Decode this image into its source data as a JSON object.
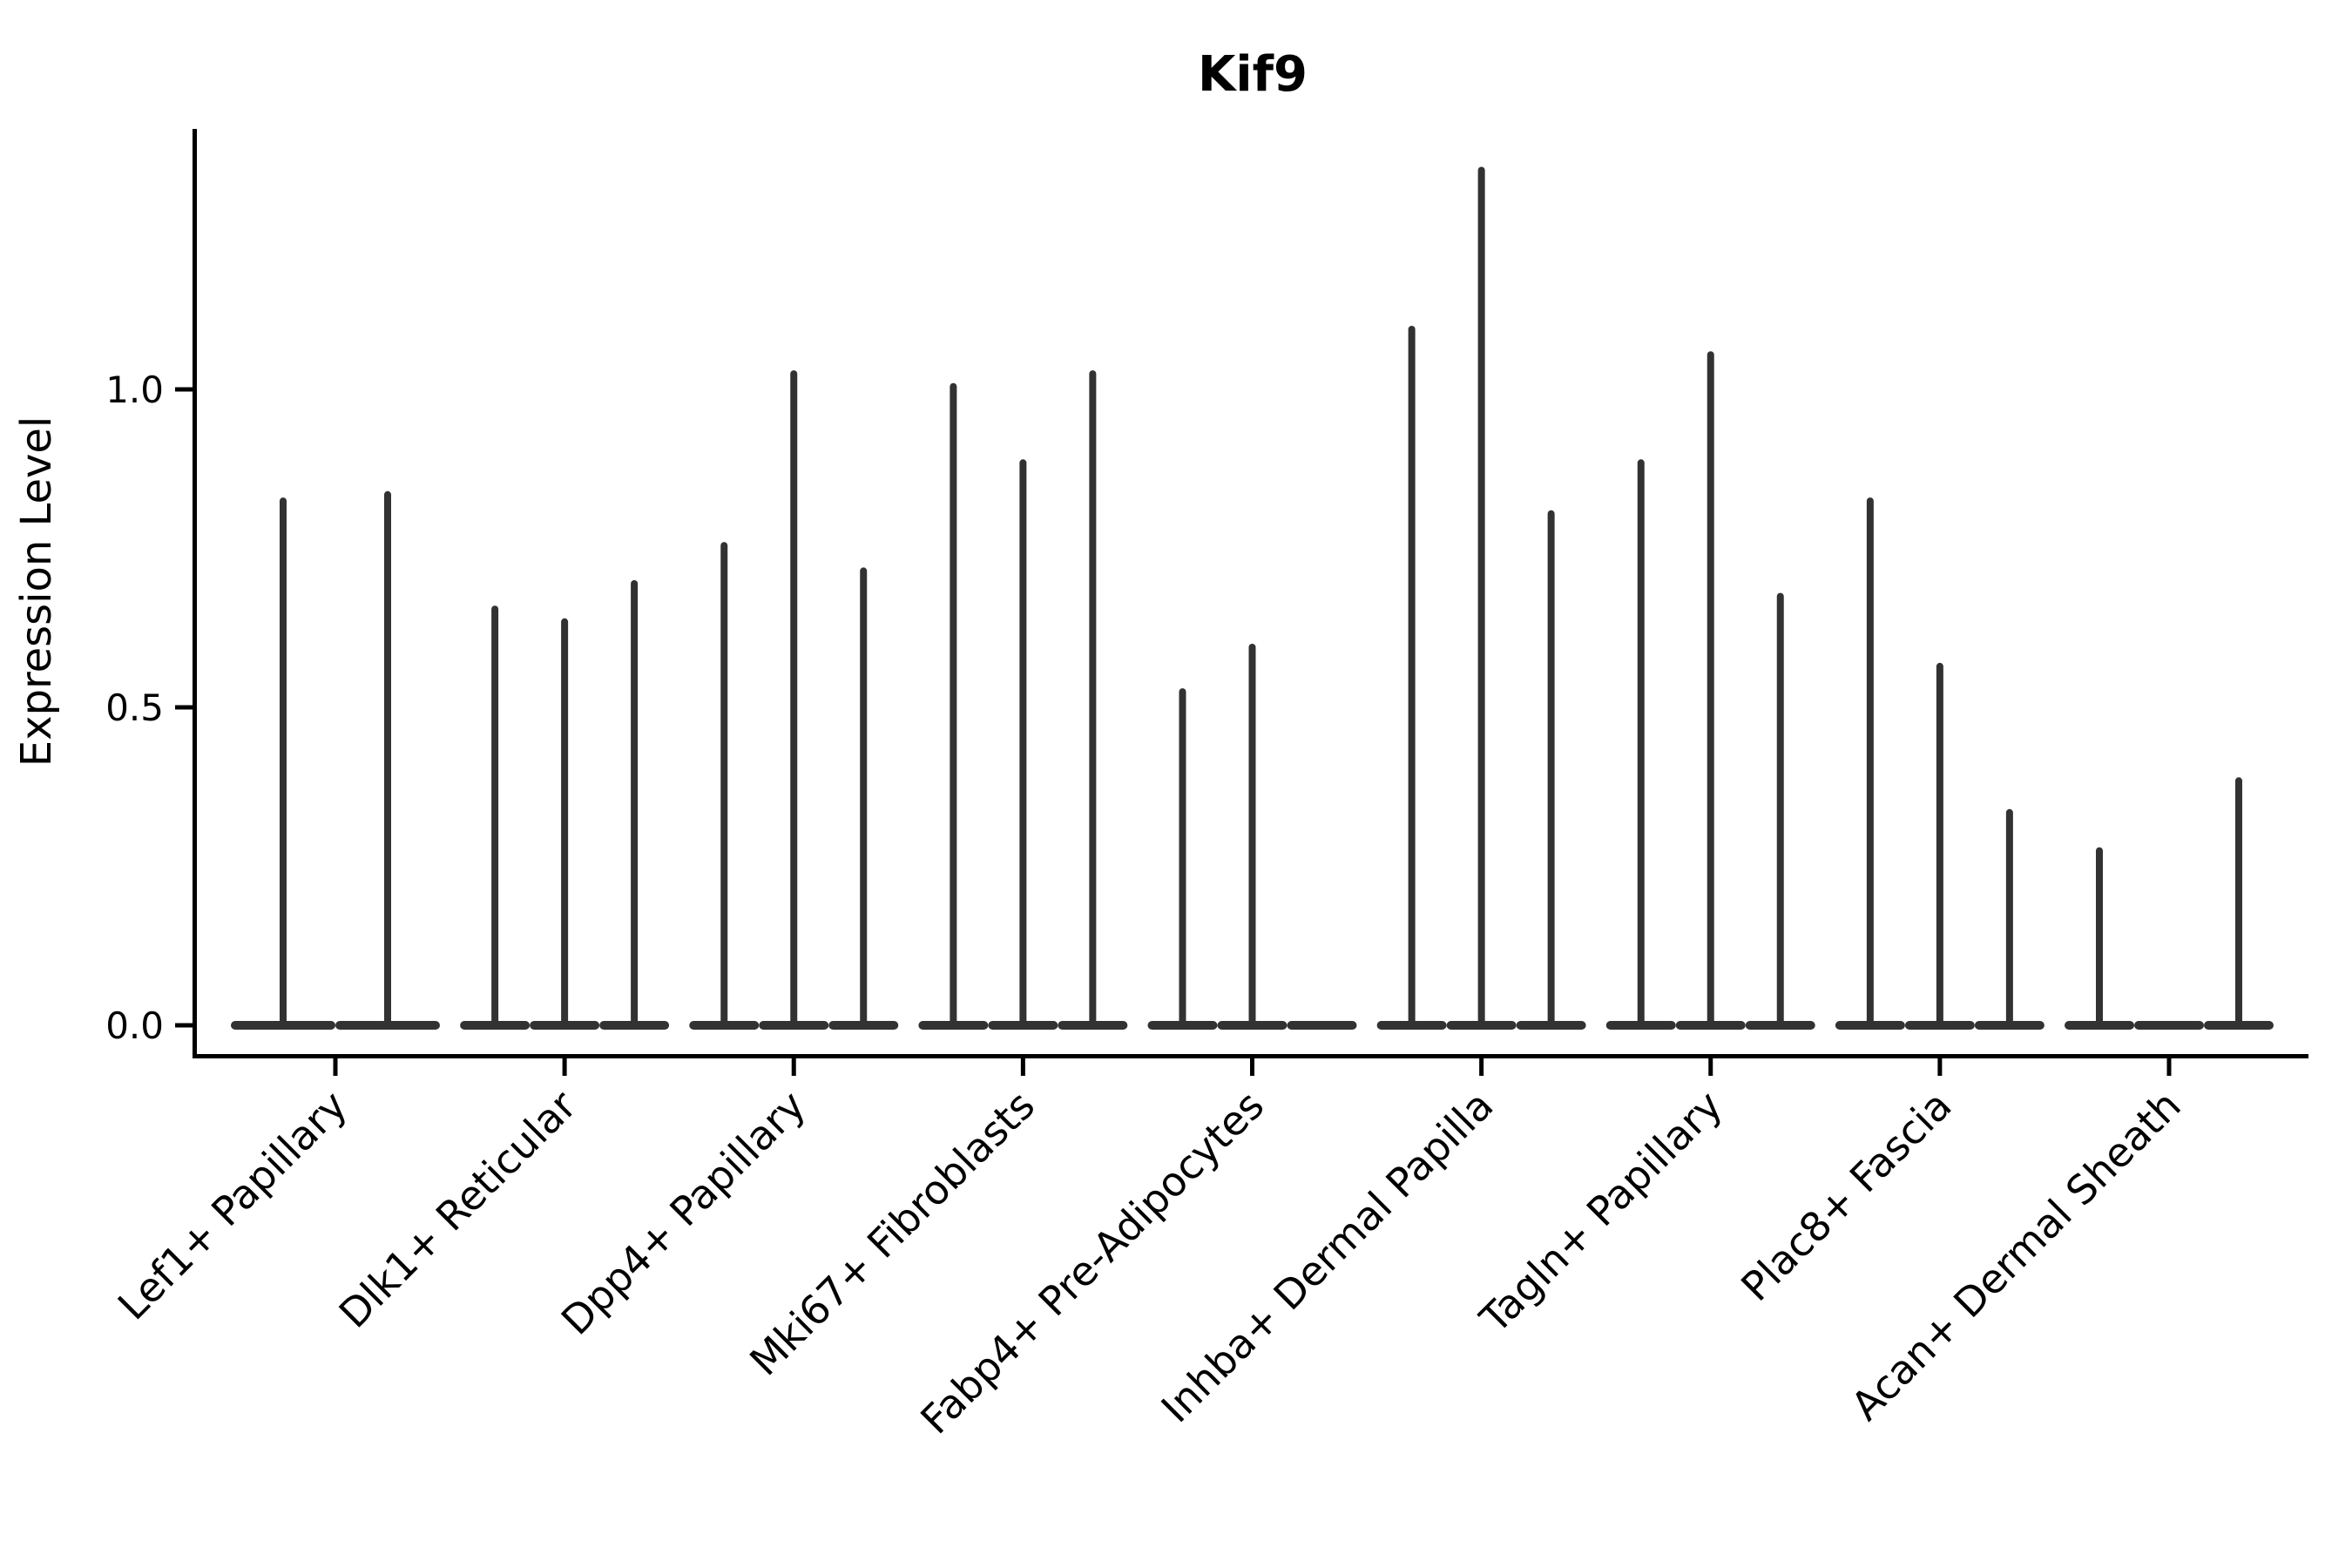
{
  "chart_data": {
    "type": "violin",
    "title": "Kif9",
    "ylabel": "Expression Level",
    "yticks": [
      0.0,
      0.5,
      1.0
    ],
    "ylim": [
      -0.05,
      1.41
    ],
    "grid": false,
    "legend": "none",
    "x_tick_rotation": 45,
    "categories": [
      "Lef1+ Papillary",
      "Dlk1+ Reticular",
      "Dpp4+ Papillary",
      "Mki67+ Fibroblasts",
      "Fabp4+ Pre-Adipocytes",
      "Inhba+ Dermal Papilla",
      "Tagln+ Papillary",
      "Plac8+ Fascia",
      "Acan+ Dermal Sheath"
    ],
    "groups": [
      {
        "category": "Lef1+ Papillary",
        "violin_max": [
          0.83,
          0.84
        ]
      },
      {
        "category": "Dlk1+ Reticular",
        "violin_max": [
          0.66,
          0.64,
          0.7
        ]
      },
      {
        "category": "Dpp4+ Papillary",
        "violin_max": [
          0.76,
          1.03,
          0.72
        ]
      },
      {
        "category": "Mki67+ Fibroblasts",
        "violin_max": [
          1.01,
          0.89,
          1.03
        ]
      },
      {
        "category": "Fabp4+ Pre-Adipocytes",
        "violin_max": [
          0.53,
          0.6,
          0.0
        ]
      },
      {
        "category": "Inhba+ Dermal Papilla",
        "violin_max": [
          1.1,
          1.35,
          0.81
        ]
      },
      {
        "category": "Tagln+ Papillary",
        "violin_max": [
          0.89,
          1.06,
          0.68
        ]
      },
      {
        "category": "Plac8+ Fascia",
        "violin_max": [
          0.83,
          0.57,
          0.34
        ]
      },
      {
        "category": "Acan+ Dermal Sheath",
        "violin_max": [
          0.28,
          0.0,
          0.39
        ]
      }
    ],
    "colors": {
      "violin": "#323232",
      "axis": "#000000",
      "text": "#000000",
      "background": "#ffffff"
    }
  }
}
